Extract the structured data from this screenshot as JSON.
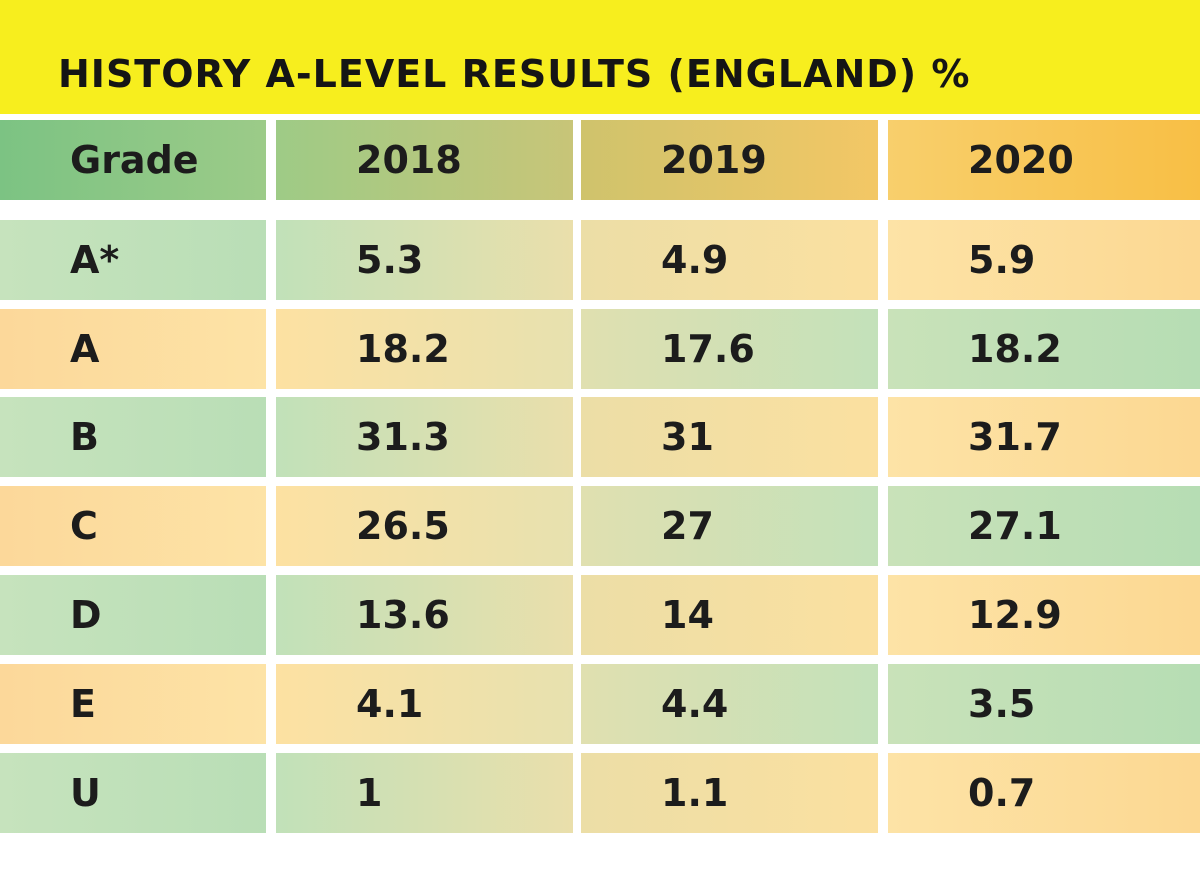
{
  "title": "HISTORY A-LEVEL RESULTS (ENGLAND) %",
  "chart_data": {
    "type": "table",
    "title": "HISTORY A-LEVEL RESULTS (ENGLAND) %",
    "columns": [
      "Grade",
      "2018",
      "2019",
      "2020"
    ],
    "rows": [
      [
        "A*",
        "5.3",
        "4.9",
        "5.9"
      ],
      [
        "A",
        "18.2",
        "17.6",
        "18.2"
      ],
      [
        "B",
        "31.3",
        "31",
        "31.7"
      ],
      [
        "C",
        "26.5",
        "27",
        "27.1"
      ],
      [
        "D",
        "13.6",
        "14",
        "12.9"
      ],
      [
        "E",
        "4.1",
        "4.4",
        "3.5"
      ],
      [
        "U",
        "1",
        "1.1",
        "0.7"
      ]
    ],
    "colors": {
      "title_bar": "#f7ee1e",
      "header_green": "#7cc383",
      "header_orange": "#f8bf45",
      "row_green": "#c6e3bd",
      "row_orange": "#fcd89a"
    }
  }
}
